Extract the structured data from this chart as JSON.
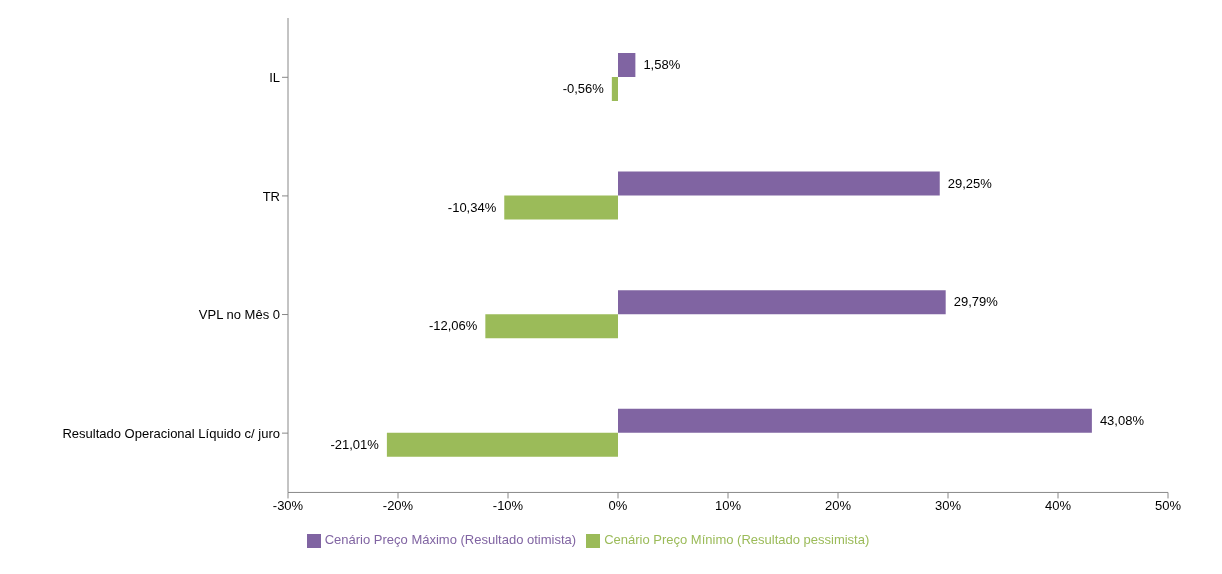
{
  "chart_data": {
    "type": "bar",
    "orientation": "horizontal",
    "categories": [
      "IL",
      "TR",
      "VPL no Mês 0",
      "Resultado Operacional Líquido c/ juro"
    ],
    "series": [
      {
        "name": "Cenário Preço Máximo (Resultado otimista)",
        "color": "#8064a2",
        "values": [
          1.58,
          29.25,
          29.79,
          43.08
        ],
        "value_labels": [
          "1,58%",
          "29,25%",
          "29,79%",
          "43,08%"
        ]
      },
      {
        "name": "Cenário Preço Mínimo (Resultado pessimista)",
        "color": "#9bbb59",
        "values": [
          -0.56,
          -10.34,
          -12.06,
          -21.01
        ],
        "value_labels": [
          "-0,56%",
          "-10,34%",
          "-12,06%",
          "-21,01%"
        ]
      }
    ],
    "xlim": [
      -30,
      50
    ],
    "xticks": [
      {
        "value": -30,
        "label": "-30%"
      },
      {
        "value": -20,
        "label": "-20%"
      },
      {
        "value": -10,
        "label": "-10%"
      },
      {
        "value": 0,
        "label": "0%"
      },
      {
        "value": 10,
        "label": "10%"
      },
      {
        "value": 20,
        "label": "20%"
      },
      {
        "value": 30,
        "label": "30%"
      },
      {
        "value": 40,
        "label": "40%"
      },
      {
        "value": 50,
        "label": "50%"
      }
    ],
    "grid": false,
    "legend": "bottom"
  }
}
